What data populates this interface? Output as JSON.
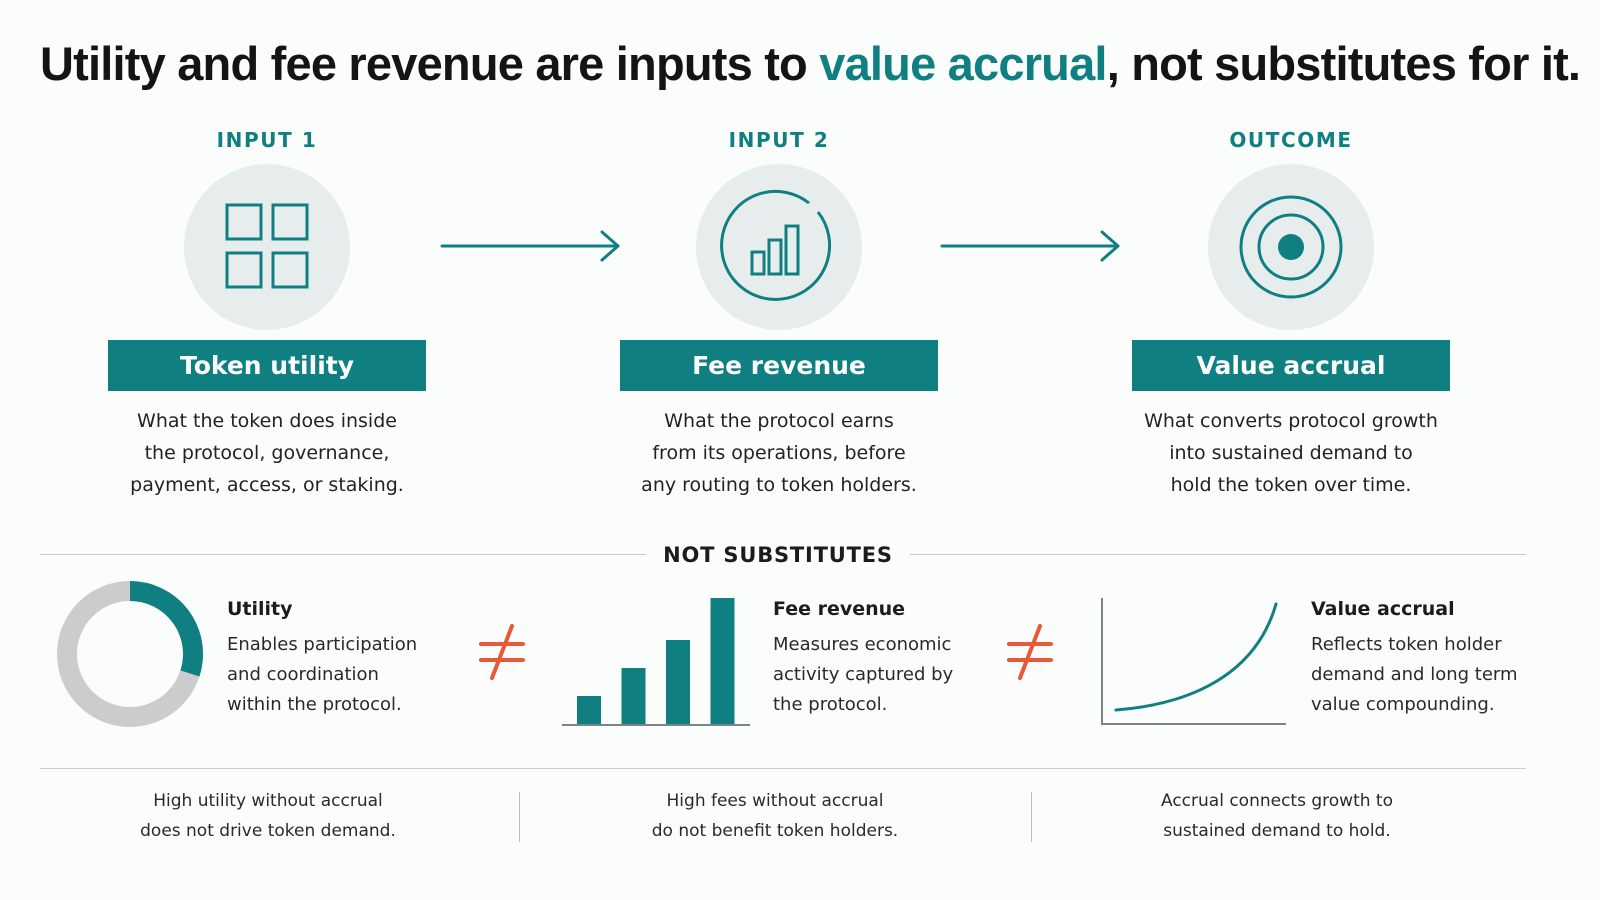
{
  "title": {
    "before": "Utility and fee revenue are inputs to ",
    "accent": "value accrual",
    "after": ", not substitutes for it."
  },
  "stages": [
    {
      "kicker": "INPUT 1",
      "icon": "grid-icon",
      "label": "Token utility",
      "desc_lines": [
        "What the token does inside",
        "the protocol, governance,",
        "payment, access, or staking."
      ]
    },
    {
      "kicker": "INPUT 2",
      "icon": "bar-chart-icon",
      "label": "Fee revenue",
      "desc_lines": [
        "What the protocol earns",
        "from its operations, before",
        "any routing to token holders."
      ]
    },
    {
      "kicker": "OUTCOME",
      "icon": "target-icon",
      "label": "Value accrual",
      "desc_lines": [
        "What converts protocol growth",
        "into sustained demand to",
        "hold the token over time."
      ]
    }
  ],
  "section_label": "NOT SUBSTITUTES",
  "comparisons": [
    {
      "title": "Utility",
      "desc_lines": [
        "Enables participation",
        "and coordination",
        "within the protocol."
      ],
      "visual": "donut-icon",
      "donut_fraction": 0.3
    },
    {
      "title": "Fee revenue",
      "desc_lines": [
        "Measures economic",
        "activity captured by",
        "the protocol."
      ],
      "visual": "bar-chart-icon",
      "bar_values": [
        1,
        2,
        3,
        4.5
      ]
    },
    {
      "title": "Value accrual",
      "desc_lines": [
        "Reflects token holder",
        "demand and long term",
        "value compounding."
      ],
      "visual": "growth-curve-icon"
    }
  ],
  "not_equal_symbol": "≠",
  "footer": [
    [
      "High utility without accrual",
      "does not drive token demand."
    ],
    [
      "High fees without accrual",
      "do not benefit token holders."
    ],
    [
      "Accrual connects growth to",
      "sustained demand to hold."
    ]
  ],
  "colors": {
    "teal": "#0f7f82",
    "circle_bg": "#e7eded",
    "grey": "#cccccc",
    "not_equal": "#e8583a"
  }
}
